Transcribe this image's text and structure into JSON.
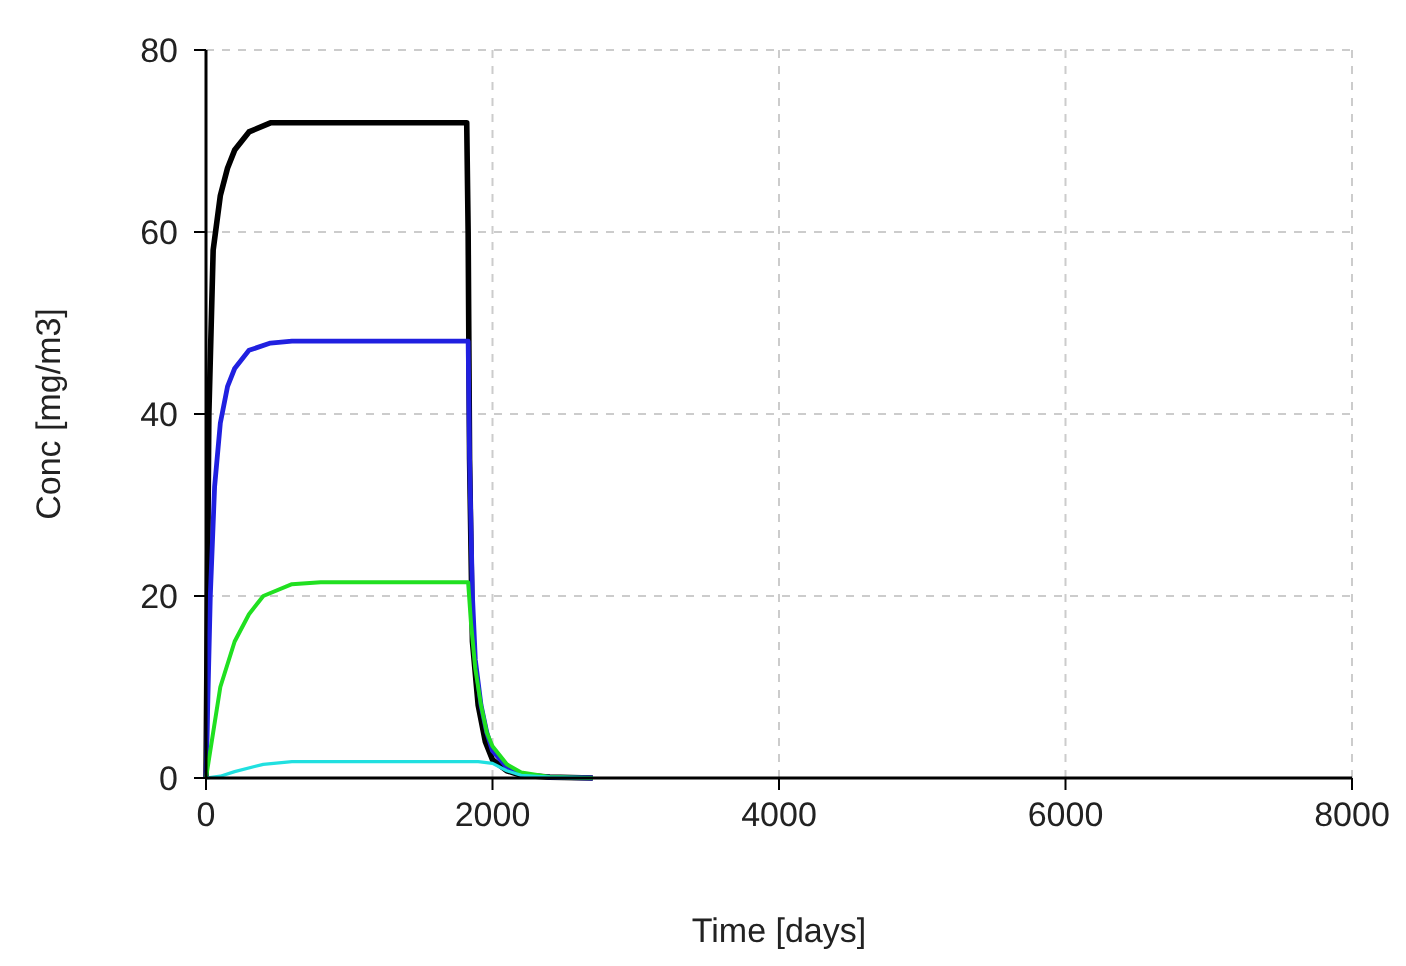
{
  "chart_data": {
    "type": "line",
    "xlabel": "Time [days]",
    "ylabel": "Conc [mg/m3]",
    "xlim": [
      0,
      8000
    ],
    "xticks": [
      0,
      2000,
      4000,
      6000,
      8000
    ],
    "ylim": [
      0,
      80
    ],
    "yticks": [
      0,
      20,
      40,
      60,
      80
    ],
    "grid": true,
    "line_style": "solid",
    "series": [
      {
        "color": "#000000",
        "x": [
          0,
          20,
          50,
          100,
          150,
          200,
          300,
          450,
          1820,
          1830,
          1840,
          1860,
          1900,
          1950,
          2000,
          2100,
          2200,
          2400,
          2700
        ],
        "values": [
          0,
          40,
          58,
          64,
          67,
          69,
          71,
          72,
          72,
          60,
          35,
          15,
          8,
          4,
          2,
          0.8,
          0.3,
          0.1,
          0
        ]
      },
      {
        "color": "#2020e0",
        "x": [
          0,
          30,
          60,
          100,
          150,
          200,
          300,
          450,
          600,
          1830,
          1840,
          1860,
          1880,
          1920,
          1960,
          2000,
          2100,
          2200,
          2400,
          2700
        ],
        "values": [
          0,
          20,
          32,
          39,
          43,
          45,
          47,
          47.8,
          48,
          48,
          35,
          20,
          13,
          8,
          5,
          3,
          1.2,
          0.4,
          0.1,
          0
        ]
      },
      {
        "color": "#20e020",
        "x": [
          0,
          50,
          100,
          200,
          300,
          400,
          600,
          800,
          1830,
          1850,
          1880,
          1920,
          1960,
          2000,
          2100,
          2200,
          2400,
          2700
        ],
        "values": [
          0,
          5,
          10,
          15,
          18,
          20,
          21.3,
          21.5,
          21.5,
          17,
          12,
          8,
          5,
          3.5,
          1.5,
          0.6,
          0.1,
          0
        ]
      },
      {
        "color": "#20e0e0",
        "x": [
          0,
          100,
          200,
          400,
          600,
          1900,
          2000,
          2100,
          2200,
          2400,
          2700
        ],
        "values": [
          0,
          0.2,
          0.7,
          1.5,
          1.8,
          1.8,
          1.6,
          0.8,
          0.3,
          0.1,
          0
        ]
      }
    ]
  }
}
